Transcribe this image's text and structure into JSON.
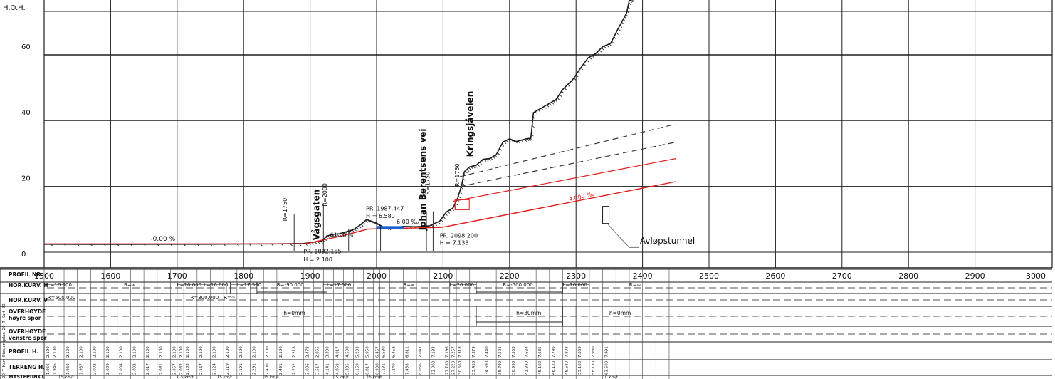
{
  "profile": {
    "axis_title": "H.O.H.",
    "y_ticks": [
      {
        "value": 0,
        "label": "0"
      },
      {
        "value": 20,
        "label": "20"
      },
      {
        "value": 40,
        "label": "40"
      },
      {
        "value": 60,
        "label": "60"
      }
    ],
    "x_ticks": [
      "1500",
      "1600",
      "1700",
      "1800",
      "1900",
      "2000",
      "2100",
      "2200",
      "2300",
      "2400",
      "2500",
      "2600",
      "2700",
      "2800",
      "2900",
      "3000"
    ],
    "street_labels": {
      "vagsgaten": "Vågsgaten",
      "johan_berentsens_vei": "Johan Berentsens vei",
      "kringsjaveien": "Kringsjåveien"
    },
    "avlop_label": "Avløpstunnel",
    "grade_labels": {
      "g0": "-0.00 %",
      "g1": "61.00 %",
      "g2": "6.00 ‰",
      "g3": "4.000 ‰"
    },
    "pr_labels": {
      "pr1_a": "PR. 1892.155",
      "pr1_b": "H = 2.100",
      "pr2_a": "PR. 1987.447",
      "pr2_b": "H = 6.580",
      "pr3_a": "PR. 2098.200",
      "pr3_b": "H = 7.133"
    },
    "radius_labels": {
      "r1": "R=1750",
      "r2": "R=2000",
      "r3": "R=1750",
      "r4": "R=1750"
    }
  },
  "colors": {
    "terrain": "#1a1a1a",
    "grid": "#1e1e1e",
    "design": "#e01c1c",
    "water": "#1e5fcf",
    "dashed": "#3a3a3a"
  },
  "table": {
    "row_labels": {
      "profil_nr": "PROFIL NR.",
      "hor_kurv_h": "HOR.KURV. H",
      "hor_kurv_v": "HOR.KURV. V",
      "overhoyde_h1": "OVERHØYDE",
      "overhoyde_h2": "høyre spor",
      "overhoyde_v1": "OVERHØYDE",
      "overhoyde_v2": "venstre spor",
      "profil_h": "PROFIL H.",
      "terreng_h": "TERRENG H.",
      "bottom_label": "MASTEPUNKT"
    },
    "hor_h_labels": {
      "a": "L=16.000",
      "b": "R=∞",
      "c": "L=16.000",
      "d": "L=16.000",
      "e": "L=17.500",
      "f": "R=-90.000",
      "g": "L=17.500",
      "h": "R=∞",
      "i": "L=20.000",
      "j": "R=-500.000",
      "k": "L=20.000",
      "l": "R=∞"
    },
    "hor_v_labels": {
      "a": "R=500.000",
      "b": "R=300.000",
      "c": "R=∞"
    },
    "overhoyde_labels": {
      "a": "h=0mm",
      "b": "h=30mm",
      "c": "h=0mm"
    },
    "profil_h_values": [
      "2.100",
      "2.100",
      "2.100",
      "2.100",
      "2.100",
      "2.100",
      "2.100",
      "2.100",
      "2.100",
      "2.100",
      "2.100",
      "2.100",
      "2.100",
      "2.100",
      "2.100",
      "2.100",
      "2.100",
      "2.100",
      "2.100",
      "2.100",
      "2.218",
      "2.478",
      "2.865",
      "3.380",
      "4.017",
      "4.598",
      "5.293",
      "5.950",
      "6.467",
      "6.580",
      "6.452",
      "6.811",
      "7.047",
      "7.133",
      "7.196",
      "7.257",
      "7.318",
      "7.379",
      "7.440",
      "7.501",
      "7.563",
      "7.624",
      "7.685",
      "7.746",
      "7.808",
      "7.869",
      "7.930",
      "7.991"
    ],
    "terreng_h_values": [
      "1.956",
      "1.946",
      "1.960",
      "1.987",
      "2.002",
      "2.009",
      "2.004",
      "2.002",
      "2.017",
      "2.031",
      "2.057",
      "2.082",
      "2.133",
      "2.167",
      "2.124",
      "2.119",
      "2.191",
      "2.291",
      "2.406",
      "2.491",
      "2.702",
      "3.006",
      "3.517",
      "4.141",
      "4.859",
      "5.385",
      "6.169",
      "6.817",
      "6.998",
      "7.131",
      "7.240",
      "7.458",
      "8.066",
      "12.000",
      "21.780",
      "27.220",
      "30.560",
      "33.450",
      "34.690",
      "35.790",
      "36.990",
      "41.330",
      "45.100",
      "46.120",
      "48.680",
      "53.100",
      "58.130",
      "63.600"
    ],
    "bottom_row_marks": [
      "0.5 km/t",
      "0.5 km/t",
      "15 km/t",
      "15 km/t",
      "15 km/t",
      "15 km/t",
      "10 km/t"
    ],
    "side_caption": "20_T_Kart_Stasjonsplan_20_T_Kart_20"
  }
}
